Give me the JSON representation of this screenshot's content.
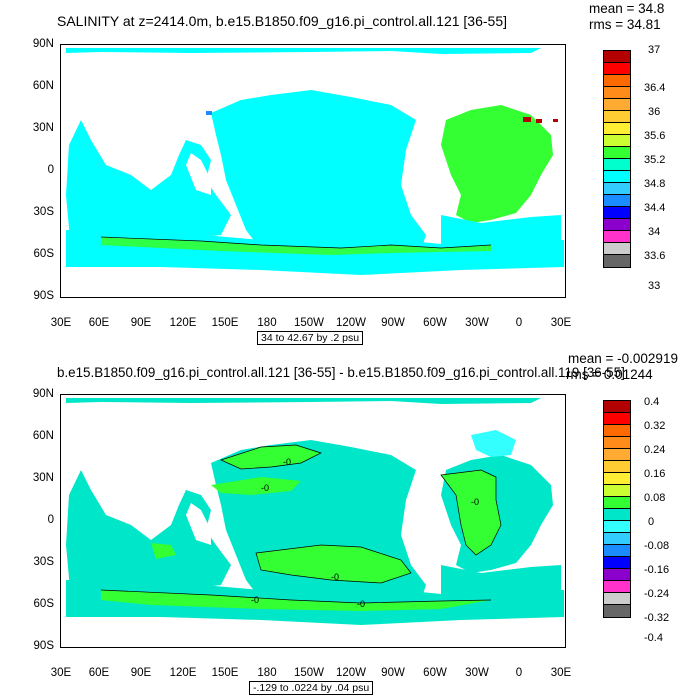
{
  "top": {
    "title": "SALINITY at z=2414.0m, b.e15.B1850.f09_g16.pi_control.all.121 [36-55]",
    "mean": "mean = 34.8",
    "rms": "rms = 34.81",
    "range_label": "34 to 42.67 by .2 psu",
    "legend_labels": [
      "37",
      "36.4",
      "36",
      "35.6",
      "35.2",
      "34.8",
      "34.4",
      "34",
      "33.6",
      "33"
    ],
    "colors": {
      "ocean": "#00ffff",
      "atlantic": "#33ff33",
      "red": "#b30000",
      "blue": "#1a8cff"
    }
  },
  "bottom": {
    "title": "b.e15.B1850.f09_g16.pi_control.all.121 [36-55] - b.e15.B1850.f09_g16.pi_control.all.119 [36-55]",
    "mean": "mean = -0.002919",
    "rms": "rms = 0.01244",
    "range_label": "-.129 to .0224 by .04 psu",
    "contour_labels": [
      "-0",
      "-0",
      "-0",
      "-0",
      "-0",
      "-0"
    ],
    "legend_labels": [
      "0.4",
      "0.32",
      "0.24",
      "0.16",
      "0.08",
      "0",
      "-0.08",
      "-0.16",
      "-0.24",
      "-0.32",
      "-0.4"
    ],
    "colors": {
      "ocean": "#00e6c8",
      "green": "#33ff33",
      "cyan": "#33ffff"
    }
  },
  "axes": {
    "y_labels": [
      "90N",
      "60N",
      "30N",
      "0",
      "30S",
      "60S",
      "90S"
    ],
    "x_labels": [
      "30E",
      "60E",
      "90E",
      "120E",
      "150E",
      "180",
      "150W",
      "120W",
      "90W",
      "60W",
      "30W",
      "0",
      "30E"
    ]
  },
  "colorbar": {
    "swatches": [
      "#8c0000",
      "#cc0000",
      "#ff2200",
      "#ff6600",
      "#ff8c1a",
      "#ffaa33",
      "#ffcc33",
      "#ffee33",
      "#ffff66",
      "#ccff33",
      "#33ff33",
      "#00e6c8",
      "#33ffff",
      "#33ccff",
      "#1a8cff",
      "#0000ff",
      "#0000b3",
      "#8c00cc",
      "#cc00ff",
      "#ff33cc",
      "#ff66ff",
      "#cccccc",
      "#888888",
      "#5a5a5a"
    ]
  }
}
